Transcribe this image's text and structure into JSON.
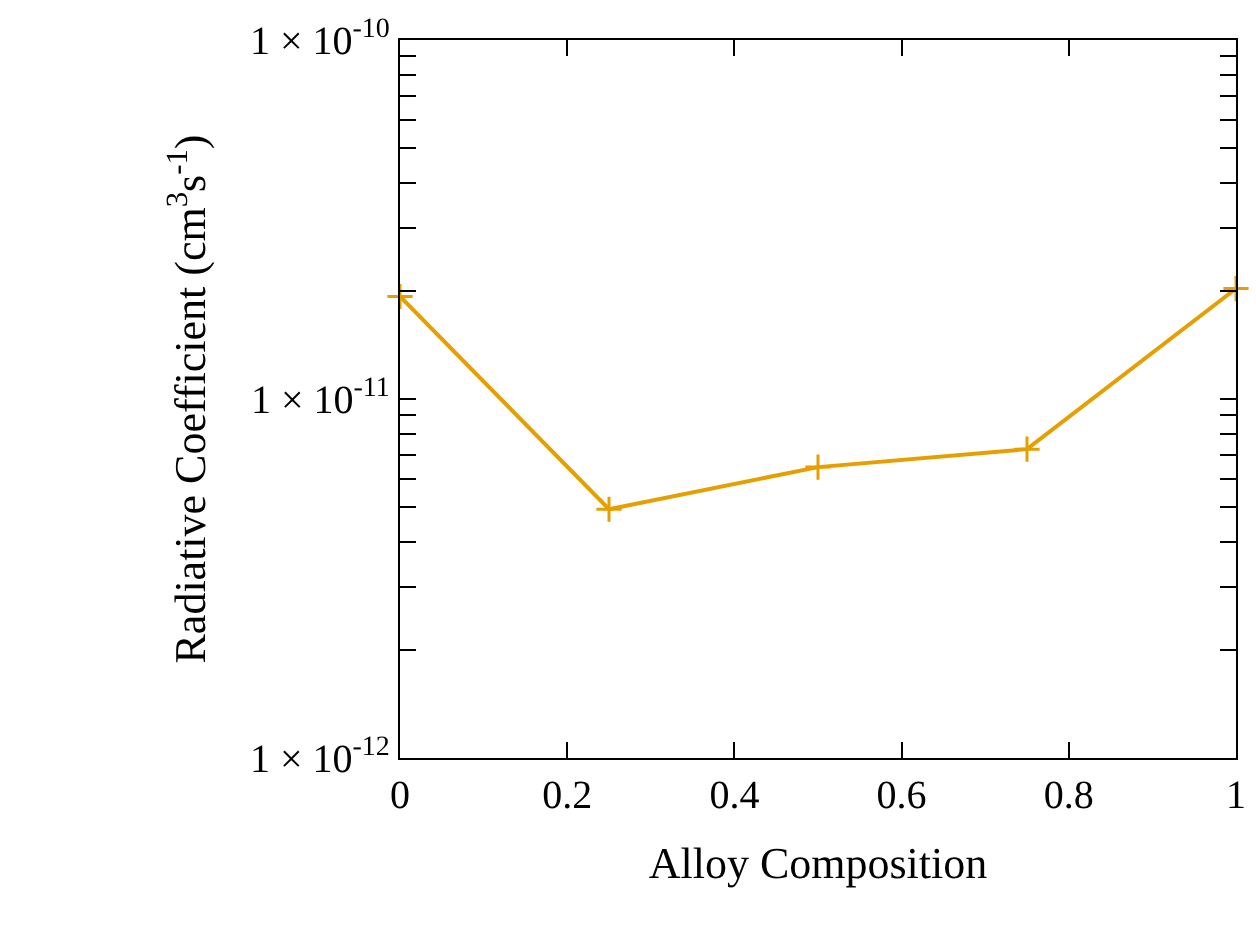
{
  "chart_data": {
    "type": "line",
    "xlabel": "Alloy Composition",
    "ylabel": "Radiative Coefficient (cm$^{3}$s$^{-1}$)",
    "x": [
      0,
      0.25,
      0.5,
      0.75,
      1
    ],
    "series": [
      {
        "color": "#e69f00",
        "values": [
          1.93e-11,
          4.93e-12,
          6.46e-12,
          7.25e-12,
          2.03e-11
        ]
      }
    ],
    "xlim": [
      0,
      1
    ],
    "xticks": [
      0,
      0.2,
      0.4,
      0.6,
      0.8,
      1
    ],
    "ylim": [
      1e-12,
      1e-10
    ],
    "yticks": [
      {
        "value": 1e-12,
        "label": "1 × 10$^{-12}$"
      },
      {
        "value": 2e-12,
        "label": null
      },
      {
        "value": 3e-12,
        "label": null
      },
      {
        "value": 4e-12,
        "label": null
      },
      {
        "value": 5e-12,
        "label": null
      },
      {
        "value": 6e-12,
        "label": null
      },
      {
        "value": 7e-12,
        "label": null
      },
      {
        "value": 8e-12,
        "label": null
      },
      {
        "value": 9e-12,
        "label": null
      },
      {
        "value": 1e-11,
        "label": "1 × 10$^{-11}$"
      },
      {
        "value": 2e-11,
        "label": null
      },
      {
        "value": 3e-11,
        "label": null
      },
      {
        "value": 4e-11,
        "label": null
      },
      {
        "value": 5e-11,
        "label": null
      },
      {
        "value": 6e-11,
        "label": null
      },
      {
        "value": 7e-11,
        "label": null
      },
      {
        "value": 8e-11,
        "label": null
      },
      {
        "value": 9e-11,
        "label": null
      },
      {
        "value": 1e-10,
        "label": "1 × 10$^{-10}$"
      }
    ],
    "log": "y",
    "marker": "cross",
    "line_style": "solid"
  }
}
